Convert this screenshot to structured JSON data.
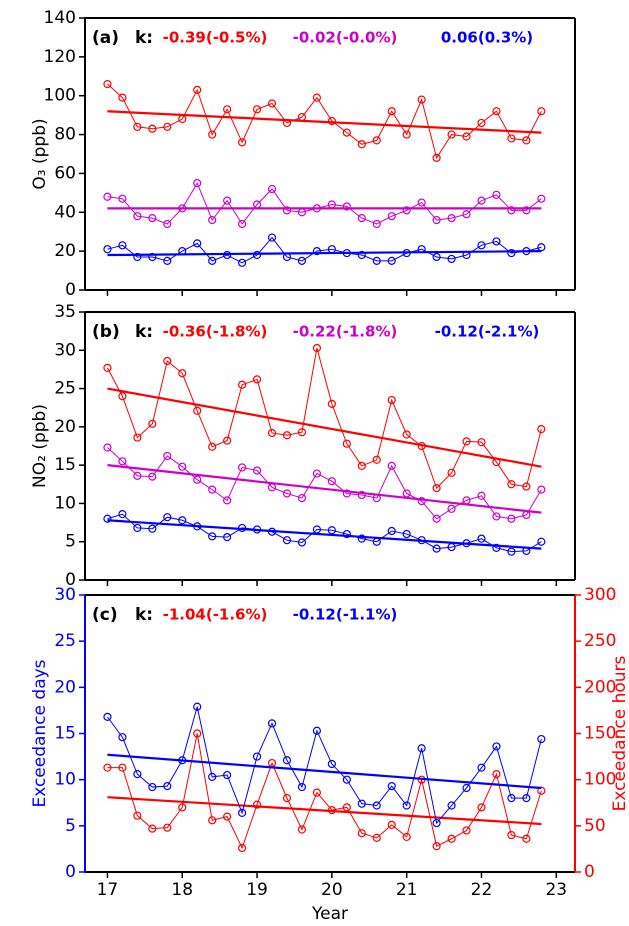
{
  "chart_data": [
    {
      "type": "line",
      "panel_label": "(a)",
      "k_label": "k:",
      "ylabel": "O₃ (ppb)",
      "xlim": [
        16.7,
        23.25
      ],
      "xticks": [
        17,
        18,
        19,
        20,
        21,
        22,
        23
      ],
      "show_xtick_labels": false,
      "ylim": [
        0,
        140
      ],
      "yticks": [
        0,
        20,
        40,
        60,
        80,
        100,
        120,
        140
      ],
      "x": [
        17,
        17.2,
        17.4,
        17.6,
        17.8,
        18,
        18.2,
        18.4,
        18.6,
        18.8,
        19,
        19.2,
        19.4,
        19.6,
        19.8,
        20,
        20.2,
        20.4,
        20.6,
        20.8,
        21,
        21.2,
        21.4,
        21.6,
        21.8,
        22,
        22.2,
        22.4,
        22.6,
        22.8
      ],
      "trend_x": [
        17,
        22.8
      ],
      "series": [
        {
          "color": "#ff0000",
          "trend_label": "-0.39(-0.5%)",
          "trend": [
            92,
            81
          ],
          "values": [
            106,
            99,
            84,
            83,
            84,
            88,
            103,
            80,
            93,
            76,
            93,
            96,
            86,
            89,
            99,
            87,
            81,
            75,
            77,
            92,
            80,
            98,
            68,
            80,
            79,
            86,
            92,
            78,
            77,
            92
          ]
        },
        {
          "color": "#cc00cc",
          "trend_label": "-0.02(-0.0%)",
          "trend": [
            42,
            42
          ],
          "values": [
            48,
            47,
            38,
            37,
            34,
            42,
            55,
            36,
            46,
            34,
            44,
            52,
            41,
            40,
            42,
            44,
            43,
            37,
            34,
            38,
            41,
            45,
            36,
            37,
            39,
            46,
            49,
            41,
            41,
            47
          ]
        },
        {
          "color": "#0000ff",
          "trend_label": "0.06(0.3%)",
          "trend": [
            18,
            20
          ],
          "values": [
            21,
            23,
            17,
            17,
            15,
            20,
            24,
            15,
            18,
            14,
            18,
            27,
            17,
            15,
            20,
            21,
            19,
            18,
            15,
            15,
            19,
            21,
            17,
            16,
            18,
            23,
            25,
            19,
            20,
            22
          ]
        }
      ]
    },
    {
      "type": "line",
      "panel_label": "(b)",
      "k_label": "k:",
      "ylabel": "NO₂ (ppb)",
      "xlim": [
        16.7,
        23.25
      ],
      "xticks": [
        17,
        18,
        19,
        20,
        21,
        22,
        23
      ],
      "show_xtick_labels": false,
      "ylim": [
        0,
        35
      ],
      "yticks": [
        0,
        5,
        10,
        15,
        20,
        25,
        30,
        35
      ],
      "x": [
        17,
        17.2,
        17.4,
        17.6,
        17.8,
        18,
        18.2,
        18.4,
        18.6,
        18.8,
        19,
        19.2,
        19.4,
        19.6,
        19.8,
        20,
        20.2,
        20.4,
        20.6,
        20.8,
        21,
        21.2,
        21.4,
        21.6,
        21.8,
        22,
        22.2,
        22.4,
        22.6,
        22.8
      ],
      "trend_x": [
        17,
        22.8
      ],
      "series": [
        {
          "color": "#ff0000",
          "trend_label": "-0.36(-1.8%)",
          "trend": [
            25,
            14.8
          ],
          "values": [
            27.7,
            24,
            18.6,
            20.4,
            28.6,
            27,
            22.1,
            17.4,
            18.2,
            25.5,
            26.2,
            19.2,
            18.9,
            19.3,
            30.3,
            23,
            17.8,
            14.9,
            15.7,
            23.5,
            19,
            17.5,
            12,
            14,
            18.1,
            18,
            15.4,
            12.5,
            12.2,
            19.7
          ]
        },
        {
          "color": "#cc00cc",
          "trend_label": "-0.22(-1.8%)",
          "trend": [
            15,
            8.8
          ],
          "values": [
            17.3,
            15.5,
            13.6,
            13.5,
            16.2,
            14.8,
            13.1,
            11.8,
            10.4,
            14.7,
            14.3,
            12.1,
            11.3,
            10.7,
            13.9,
            12.9,
            11.3,
            11.1,
            10.7,
            14.9,
            11.3,
            10.3,
            8,
            9.3,
            10.4,
            11,
            8.3,
            8,
            8.5,
            11.8
          ]
        },
        {
          "color": "#0000ff",
          "trend_label": "-0.12(-2.1%)",
          "trend": [
            7.8,
            4.1
          ],
          "values": [
            8,
            8.6,
            6.8,
            6.7,
            8.2,
            7.8,
            7,
            5.7,
            5.6,
            6.8,
            6.6,
            6.3,
            5.2,
            4.9,
            6.6,
            6.5,
            6,
            5.4,
            5,
            6.4,
            6,
            5.2,
            4.1,
            4.3,
            4.8,
            5.4,
            4.2,
            3.7,
            3.8,
            5
          ]
        }
      ]
    },
    {
      "type": "line",
      "panel_label": "(c)",
      "k_label": "k:",
      "ylabel": "Exceedance days",
      "ylabel_color": "#0000ff",
      "y2label": "Exceedance hours",
      "y2label_color": "#ff0000",
      "xlabel": "Year",
      "xlim": [
        16.7,
        23.25
      ],
      "xticks": [
        17,
        18,
        19,
        20,
        21,
        22,
        23
      ],
      "show_xtick_labels": true,
      "ylim": [
        0,
        30
      ],
      "yticks": [
        0,
        5,
        10,
        15,
        20,
        25,
        30
      ],
      "y2lim": [
        0,
        300
      ],
      "y2ticks": [
        0,
        50,
        100,
        150,
        200,
        250,
        300
      ],
      "x": [
        17,
        17.2,
        17.4,
        17.6,
        17.8,
        18,
        18.2,
        18.4,
        18.6,
        18.8,
        19,
        19.2,
        19.4,
        19.6,
        19.8,
        20,
        20.2,
        20.4,
        20.6,
        20.8,
        21,
        21.2,
        21.4,
        21.6,
        21.8,
        22,
        22.2,
        22.4,
        22.6,
        22.8
      ],
      "trend_x": [
        17,
        22.8
      ],
      "series": [
        {
          "color": "#ff0000",
          "axis": "y2",
          "trend_label": "-1.04(-1.6%)",
          "trend": [
            81,
            52
          ],
          "values": [
            113,
            113,
            61,
            47,
            48,
            70,
            150,
            56,
            60,
            26,
            73,
            118,
            80,
            46,
            86,
            67,
            70,
            42,
            37,
            51,
            38,
            100,
            28,
            36,
            45,
            70,
            106,
            40,
            36,
            88
          ]
        },
        {
          "color": "#0000ff",
          "trend_label": "-0.12(-1.1%)",
          "trend": [
            12.7,
            9.1
          ],
          "values": [
            16.8,
            14.6,
            10.6,
            9.2,
            9.3,
            12.1,
            17.9,
            10.3,
            10.5,
            6.4,
            12.5,
            16.1,
            12.1,
            9.2,
            15.3,
            11.7,
            10,
            7.4,
            7.2,
            9.3,
            7.2,
            13.4,
            5.3,
            7.2,
            9.1,
            11.3,
            13.6,
            8,
            8,
            14.4
          ]
        }
      ]
    }
  ]
}
